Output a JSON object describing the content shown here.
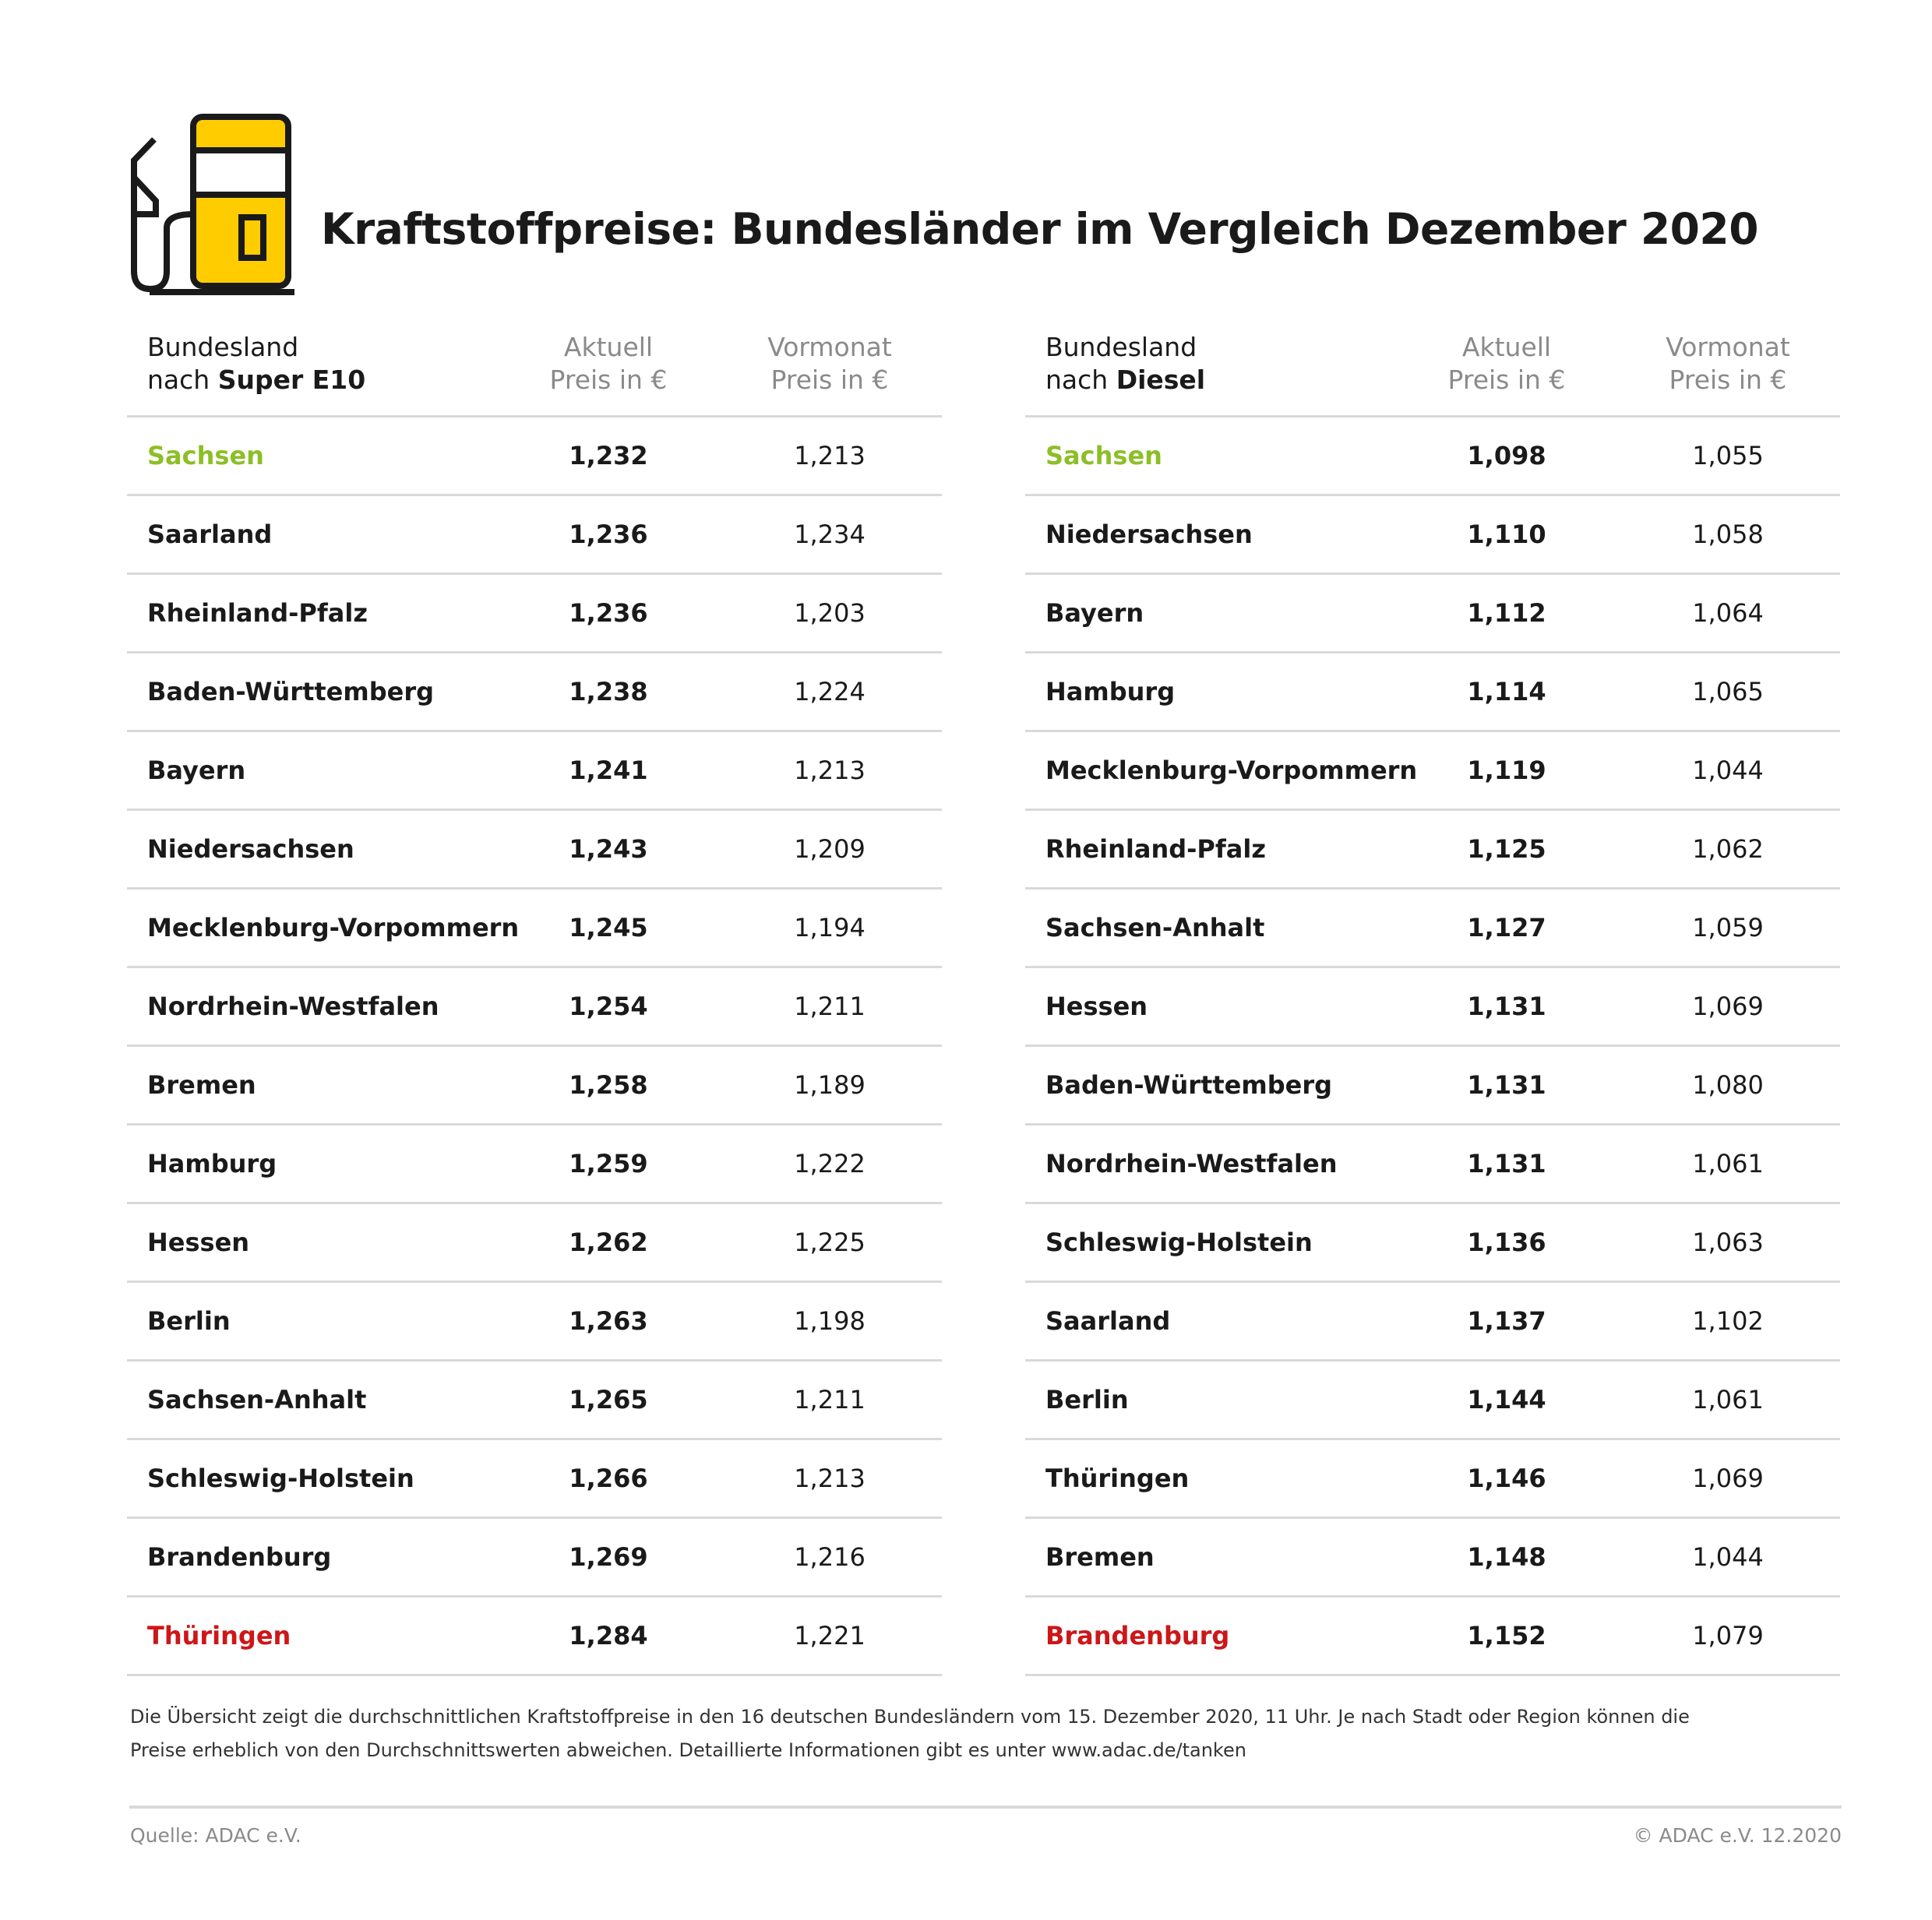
{
  "title": "Kraftstoffpreise: Bundesländer im Vergleich Dezember 2020",
  "icon": "fuel-pump-icon",
  "colors": {
    "cheapest": "#8cbf26",
    "most_expensive": "#cc1719",
    "accent": "#ffcc00"
  },
  "tables": [
    {
      "header": {
        "col1_line1": "Bundesland",
        "col1_prefix": "nach ",
        "col1_fuel": "Super E10",
        "col2_line1": "Aktuell",
        "col2_line2": "Preis in €",
        "col3_line1": "Vormonat",
        "col3_line2": "Preis in €"
      },
      "rows": [
        {
          "name": "Sachsen",
          "current": "1,232",
          "previous": "1,213",
          "highlight": "cheapest"
        },
        {
          "name": "Saarland",
          "current": "1,236",
          "previous": "1,234"
        },
        {
          "name": "Rheinland-Pfalz",
          "current": "1,236",
          "previous": "1,203"
        },
        {
          "name": "Baden-Württemberg",
          "current": "1,238",
          "previous": "1,224"
        },
        {
          "name": "Bayern",
          "current": "1,241",
          "previous": "1,213"
        },
        {
          "name": "Niedersachsen",
          "current": "1,243",
          "previous": "1,209"
        },
        {
          "name": "Mecklenburg-Vorpommern",
          "current": "1,245",
          "previous": "1,194"
        },
        {
          "name": "Nordrhein-Westfalen",
          "current": "1,254",
          "previous": "1,211"
        },
        {
          "name": "Bremen",
          "current": "1,258",
          "previous": "1,189"
        },
        {
          "name": "Hamburg",
          "current": "1,259",
          "previous": "1,222"
        },
        {
          "name": "Hessen",
          "current": "1,262",
          "previous": "1,225"
        },
        {
          "name": "Berlin",
          "current": "1,263",
          "previous": "1,198"
        },
        {
          "name": "Sachsen-Anhalt",
          "current": "1,265",
          "previous": "1,211"
        },
        {
          "name": "Schleswig-Holstein",
          "current": "1,266",
          "previous": "1,213"
        },
        {
          "name": "Brandenburg",
          "current": "1,269",
          "previous": "1,216"
        },
        {
          "name": "Thüringen",
          "current": "1,284",
          "previous": "1,221",
          "highlight": "most_expensive"
        }
      ]
    },
    {
      "header": {
        "col1_line1": "Bundesland",
        "col1_prefix": "nach ",
        "col1_fuel": "Diesel",
        "col2_line1": "Aktuell",
        "col2_line2": "Preis in €",
        "col3_line1": "Vormonat",
        "col3_line2": "Preis in €"
      },
      "rows": [
        {
          "name": "Sachsen",
          "current": "1,098",
          "previous": "1,055",
          "highlight": "cheapest"
        },
        {
          "name": "Niedersachsen",
          "current": "1,110",
          "previous": "1,058"
        },
        {
          "name": "Bayern",
          "current": "1,112",
          "previous": "1,064"
        },
        {
          "name": "Hamburg",
          "current": "1,114",
          "previous": "1,065"
        },
        {
          "name": "Mecklenburg-Vorpommern",
          "current": "1,119",
          "previous": "1,044"
        },
        {
          "name": "Rheinland-Pfalz",
          "current": "1,125",
          "previous": "1,062"
        },
        {
          "name": "Sachsen-Anhalt",
          "current": "1,127",
          "previous": "1,059"
        },
        {
          "name": "Hessen",
          "current": "1,131",
          "previous": "1,069"
        },
        {
          "name": "Baden-Württemberg",
          "current": "1,131",
          "previous": "1,080"
        },
        {
          "name": "Nordrhein-Westfalen",
          "current": "1,131",
          "previous": "1,061"
        },
        {
          "name": "Schleswig-Holstein",
          "current": "1,136",
          "previous": "1,063"
        },
        {
          "name": "Saarland",
          "current": "1,137",
          "previous": "1,102"
        },
        {
          "name": "Berlin",
          "current": "1,144",
          "previous": "1,061"
        },
        {
          "name": "Thüringen",
          "current": "1,146",
          "previous": "1,069"
        },
        {
          "name": "Bremen",
          "current": "1,148",
          "previous": "1,044"
        },
        {
          "name": "Brandenburg",
          "current": "1,152",
          "previous": "1,079",
          "highlight": "most_expensive"
        }
      ]
    }
  ],
  "footnote": {
    "line1": "Die Übersicht zeigt die durchschnittlichen Kraftstoffpreise in den 16 deutschen Bundesländern vom 15. Dezember 2020, 11 Uhr. Je nach Stadt oder Region können die",
    "line2": "Preise erheblich von den Durchschnittswerten abweichen. Detaillierte Informationen gibt es unter www.adac.de/tanken"
  },
  "source": "Quelle: ADAC e.V.",
  "copyright": "© ADAC e.V. 12.2020"
}
